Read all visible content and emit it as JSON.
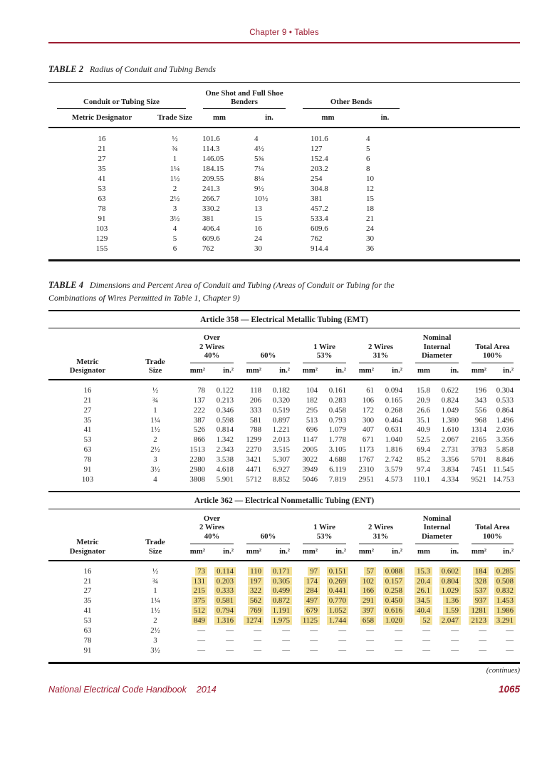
{
  "page": {
    "header": "Chapter 9 • Tables",
    "continues": "(continues)",
    "footer_title": "National Electrical Code Handbook",
    "footer_year": "2014",
    "page_number": "1065",
    "accent_color": "#9c1b30",
    "highlight_color": "#f5e39c"
  },
  "table2": {
    "label": "TABLE 2",
    "title": "Radius of Conduit and Tubing Bends",
    "groups": [
      {
        "label": "Conduit or Tubing Size"
      },
      {
        "label": "One Shot and Full Shoe Benders"
      },
      {
        "label": "Other Bends"
      }
    ],
    "columns": [
      "Metric Designator",
      "Trade Size",
      "mm",
      "in.",
      "mm",
      "in."
    ],
    "rows": [
      [
        "16",
        "½",
        "101.6",
        "4",
        "101.6",
        "4"
      ],
      [
        "21",
        "¾",
        "114.3",
        "4½",
        "127",
        "5"
      ],
      [
        "27",
        "1",
        "146.05",
        "5¾",
        "152.4",
        "6"
      ],
      [
        "35",
        "1¼",
        "184.15",
        "7¼",
        "203.2",
        "8"
      ],
      [
        "41",
        "1½",
        "209.55",
        "8¼",
        "254",
        "10"
      ],
      [
        "53",
        "2",
        "241.3",
        "9½",
        "304.8",
        "12"
      ],
      [
        "63",
        "2½",
        "266.7",
        "10½",
        "381",
        "15"
      ],
      [
        "78",
        "3",
        "330.2",
        "13",
        "457.2",
        "18"
      ],
      [
        "91",
        "3½",
        "381",
        "15",
        "533.4",
        "21"
      ],
      [
        "103",
        "4",
        "406.4",
        "16",
        "609.6",
        "24"
      ],
      [
        "129",
        "5",
        "609.6",
        "24",
        "762",
        "30"
      ],
      [
        "155",
        "6",
        "762",
        "30",
        "914.4",
        "36"
      ]
    ]
  },
  "table4": {
    "label": "TABLE 4",
    "title": "Dimensions and Percent Area of Conduit and Tubing (Areas of Conduit or Tubing for the Combinations of Wires Permitted in Table 1, Chapter 9)",
    "header": {
      "metric": "Metric\nDesignator",
      "trade": "Trade\nSize",
      "groups": [
        "Over\n2 Wires\n40%",
        "60%",
        "1 Wire\n53%",
        "2 Wires\n31%",
        "Nominal\nInternal\nDiameter",
        "Total Area\n100%"
      ],
      "units": [
        "mm²",
        "in.²",
        "mm²",
        "in.²",
        "mm²",
        "in.²",
        "mm²",
        "in.²",
        "mm",
        "in.",
        "mm²",
        "in.²"
      ]
    },
    "sections": [
      {
        "article": "Article 358 — Electrical Metallic Tubing (EMT)",
        "rows": [
          [
            "16",
            "½",
            "78",
            "0.122",
            "118",
            "0.182",
            "104",
            "0.161",
            "61",
            "0.094",
            "15.8",
            "0.622",
            "196",
            "0.304"
          ],
          [
            "21",
            "¾",
            "137",
            "0.213",
            "206",
            "0.320",
            "182",
            "0.283",
            "106",
            "0.165",
            "20.9",
            "0.824",
            "343",
            "0.533"
          ],
          [
            "27",
            "1",
            "222",
            "0.346",
            "333",
            "0.519",
            "295",
            "0.458",
            "172",
            "0.268",
            "26.6",
            "1.049",
            "556",
            "0.864"
          ],
          [
            "35",
            "1¼",
            "387",
            "0.598",
            "581",
            "0.897",
            "513",
            "0.793",
            "300",
            "0.464",
            "35.1",
            "1.380",
            "968",
            "1.496"
          ],
          [
            "41",
            "1½",
            "526",
            "0.814",
            "788",
            "1.221",
            "696",
            "1.079",
            "407",
            "0.631",
            "40.9",
            "1.610",
            "1314",
            "2.036"
          ],
          [
            "53",
            "2",
            "866",
            "1.342",
            "1299",
            "2.013",
            "1147",
            "1.778",
            "671",
            "1.040",
            "52.5",
            "2.067",
            "2165",
            "3.356"
          ],
          [
            "63",
            "2½",
            "1513",
            "2.343",
            "2270",
            "3.515",
            "2005",
            "3.105",
            "1173",
            "1.816",
            "69.4",
            "2.731",
            "3783",
            "5.858"
          ],
          [
            "78",
            "3",
            "2280",
            "3.538",
            "3421",
            "5.307",
            "3022",
            "4.688",
            "1767",
            "2.742",
            "85.2",
            "3.356",
            "5701",
            "8.846"
          ],
          [
            "91",
            "3½",
            "2980",
            "4.618",
            "4471",
            "6.927",
            "3949",
            "6.119",
            "2310",
            "3.579",
            "97.4",
            "3.834",
            "7451",
            "11.545"
          ],
          [
            "103",
            "4",
            "3808",
            "5.901",
            "5712",
            "8.852",
            "5046",
            "7.819",
            "2951",
            "4.573",
            "110.1",
            "4.334",
            "9521",
            "14.753"
          ]
        ]
      },
      {
        "article": "Article 362 — Electrical Nonmetallic Tubing (ENT)",
        "rows": [
          {
            "highlight": true,
            "cells": [
              "16",
              "½",
              "73",
              "0.114",
              "110",
              "0.171",
              "97",
              "0.151",
              "57",
              "0.088",
              "15.3",
              "0.602",
              "184",
              "0.285"
            ]
          },
          {
            "highlight": true,
            "cells": [
              "21",
              "¾",
              "131",
              "0.203",
              "197",
              "0.305",
              "174",
              "0.269",
              "102",
              "0.157",
              "20.4",
              "0.804",
              "328",
              "0.508"
            ]
          },
          {
            "highlight": true,
            "cells": [
              "27",
              "1",
              "215",
              "0.333",
              "322",
              "0.499",
              "284",
              "0.441",
              "166",
              "0.258",
              "26.1",
              "1.029",
              "537",
              "0.832"
            ]
          },
          {
            "highlight": true,
            "cells": [
              "35",
              "1¼",
              "375",
              "0.581",
              "562",
              "0.872",
              "497",
              "0.770",
              "291",
              "0.450",
              "34.5",
              "1.36",
              "937",
              "1.453"
            ]
          },
          {
            "highlight": true,
            "cells": [
              "41",
              "1½",
              "512",
              "0.794",
              "769",
              "1.191",
              "679",
              "1.052",
              "397",
              "0.616",
              "40.4",
              "1.59",
              "1281",
              "1.986"
            ]
          },
          {
            "highlight": true,
            "cells": [
              "53",
              "2",
              "849",
              "1.316",
              "1274",
              "1.975",
              "1125",
              "1.744",
              "658",
              "1.020",
              "52",
              "2.047",
              "2123",
              "3.291"
            ]
          },
          [
            "63",
            "2½",
            "—",
            "—",
            "—",
            "—",
            "—",
            "—",
            "—",
            "—",
            "—",
            "—",
            "—",
            "—"
          ],
          [
            "78",
            "3",
            "—",
            "—",
            "—",
            "—",
            "—",
            "—",
            "—",
            "—",
            "—",
            "—",
            "—",
            "—"
          ],
          [
            "91",
            "3½",
            "—",
            "—",
            "—",
            "—",
            "—",
            "—",
            "—",
            "—",
            "—",
            "—",
            "—",
            "—"
          ]
        ]
      }
    ]
  }
}
